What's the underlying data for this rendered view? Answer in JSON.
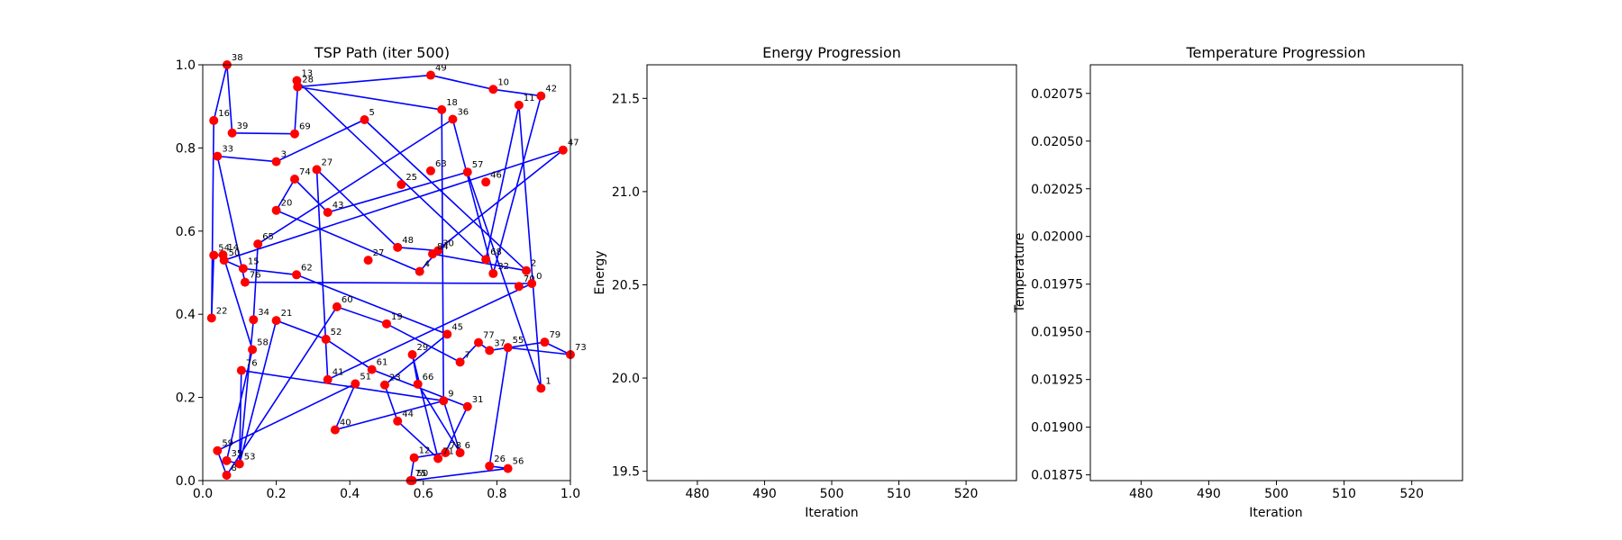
{
  "chart_data": [
    {
      "type": "scatter",
      "title": "TSP Path (iter 500)",
      "xlabel": "",
      "ylabel": "",
      "xlim": [
        0,
        1
      ],
      "ylim": [
        0,
        1
      ],
      "xticks": [
        "0.0",
        "0.2",
        "0.4",
        "0.6",
        "0.8",
        "1.0"
      ],
      "yticks": [
        "0.0",
        "0.2",
        "0.4",
        "0.6",
        "0.8",
        "1.0"
      ],
      "point_color": "#ff0000",
      "path_color": "#0000ff",
      "points": [
        {
          "id": "38",
          "x": 0.066,
          "y": 1.0
        },
        {
          "id": "13",
          "x": 0.256,
          "y": 0.962
        },
        {
          "id": "28",
          "x": 0.258,
          "y": 0.947
        },
        {
          "id": "49",
          "x": 0.62,
          "y": 0.975
        },
        {
          "id": "10",
          "x": 0.79,
          "y": 0.941
        },
        {
          "id": "42",
          "x": 0.92,
          "y": 0.925
        },
        {
          "id": "18",
          "x": 0.65,
          "y": 0.892
        },
        {
          "id": "11",
          "x": 0.86,
          "y": 0.903
        },
        {
          "id": "36",
          "x": 0.68,
          "y": 0.869
        },
        {
          "id": "16",
          "x": 0.03,
          "y": 0.866
        },
        {
          "id": "39",
          "x": 0.08,
          "y": 0.836
        },
        {
          "id": "69",
          "x": 0.25,
          "y": 0.834
        },
        {
          "id": "5",
          "x": 0.44,
          "y": 0.868
        },
        {
          "id": "47",
          "x": 0.98,
          "y": 0.795
        },
        {
          "id": "33",
          "x": 0.04,
          "y": 0.78
        },
        {
          "id": "3",
          "x": 0.2,
          "y": 0.767
        },
        {
          "id": "27",
          "x": 0.31,
          "y": 0.748
        },
        {
          "id": "74",
          "x": 0.25,
          "y": 0.725
        },
        {
          "id": "63",
          "x": 0.62,
          "y": 0.745
        },
        {
          "id": "57",
          "x": 0.72,
          "y": 0.742
        },
        {
          "id": "25",
          "x": 0.54,
          "y": 0.712
        },
        {
          "id": "46",
          "x": 0.77,
          "y": 0.718
        },
        {
          "id": "20",
          "x": 0.2,
          "y": 0.65
        },
        {
          "id": "43",
          "x": 0.34,
          "y": 0.645
        },
        {
          "id": "48",
          "x": 0.53,
          "y": 0.561
        },
        {
          "id": "30",
          "x": 0.64,
          "y": 0.553
        },
        {
          "id": "84",
          "x": 0.625,
          "y": 0.545
        },
        {
          "id": "68",
          "x": 0.77,
          "y": 0.532
        },
        {
          "id": "2",
          "x": 0.88,
          "y": 0.505
        },
        {
          "id": "32",
          "x": 0.79,
          "y": 0.498
        },
        {
          "id": "4",
          "x": 0.59,
          "y": 0.503
        },
        {
          "id": "70",
          "x": 0.86,
          "y": 0.467
        },
        {
          "id": "0",
          "x": 0.895,
          "y": 0.474
        },
        {
          "id": "54",
          "x": 0.03,
          "y": 0.542
        },
        {
          "id": "14",
          "x": 0.055,
          "y": 0.543
        },
        {
          "id": "50",
          "x": 0.058,
          "y": 0.53
        },
        {
          "id": "65",
          "x": 0.15,
          "y": 0.569
        },
        {
          "id": "15",
          "x": 0.11,
          "y": 0.51
        },
        {
          "id": "76b",
          "x": 0.115,
          "y": 0.477
        },
        {
          "id": "62",
          "x": 0.255,
          "y": 0.495
        },
        {
          "id": "27",
          "x": 0.45,
          "y": 0.53
        },
        {
          "id": "22",
          "x": 0.024,
          "y": 0.391
        },
        {
          "id": "34",
          "x": 0.138,
          "y": 0.387
        },
        {
          "id": "21",
          "x": 0.2,
          "y": 0.385
        },
        {
          "id": "60",
          "x": 0.365,
          "y": 0.418
        },
        {
          "id": "19",
          "x": 0.5,
          "y": 0.377
        },
        {
          "id": "45",
          "x": 0.665,
          "y": 0.352
        },
        {
          "id": "52",
          "x": 0.335,
          "y": 0.34
        },
        {
          "id": "77",
          "x": 0.75,
          "y": 0.332
        },
        {
          "id": "37",
          "x": 0.78,
          "y": 0.313
        },
        {
          "id": "55",
          "x": 0.83,
          "y": 0.32
        },
        {
          "id": "79",
          "x": 0.93,
          "y": 0.333
        },
        {
          "id": "73",
          "x": 1.0,
          "y": 0.303
        },
        {
          "id": "58",
          "x": 0.135,
          "y": 0.315
        },
        {
          "id": "29",
          "x": 0.57,
          "y": 0.303
        },
        {
          "id": "7",
          "x": 0.7,
          "y": 0.285
        },
        {
          "id": "61",
          "x": 0.46,
          "y": 0.267
        },
        {
          "id": "76",
          "x": 0.105,
          "y": 0.265
        },
        {
          "id": "41",
          "x": 0.34,
          "y": 0.243
        },
        {
          "id": "66",
          "x": 0.585,
          "y": 0.232
        },
        {
          "id": "51",
          "x": 0.415,
          "y": 0.233
        },
        {
          "id": "23",
          "x": 0.495,
          "y": 0.23
        },
        {
          "id": "1",
          "x": 0.92,
          "y": 0.222
        },
        {
          "id": "9",
          "x": 0.655,
          "y": 0.192
        },
        {
          "id": "31",
          "x": 0.72,
          "y": 0.178
        },
        {
          "id": "44",
          "x": 0.53,
          "y": 0.143
        },
        {
          "id": "40",
          "x": 0.36,
          "y": 0.122
        },
        {
          "id": "59",
          "x": 0.04,
          "y": 0.072
        },
        {
          "id": "78",
          "x": 0.66,
          "y": 0.067
        },
        {
          "id": "6",
          "x": 0.7,
          "y": 0.067
        },
        {
          "id": "12",
          "x": 0.575,
          "y": 0.055
        },
        {
          "id": "71",
          "x": 0.64,
          "y": 0.053
        },
        {
          "id": "26",
          "x": 0.78,
          "y": 0.035
        },
        {
          "id": "56",
          "x": 0.83,
          "y": 0.029
        },
        {
          "id": "35",
          "x": 0.065,
          "y": 0.048
        },
        {
          "id": "53",
          "x": 0.1,
          "y": 0.04
        },
        {
          "id": "8",
          "x": 0.065,
          "y": 0.013
        },
        {
          "id": "75",
          "x": 0.565,
          "y": 0.0
        },
        {
          "id": "50",
          "x": 0.57,
          "y": 0.0
        }
      ],
      "path": [
        "38",
        "16",
        "22",
        "54",
        "14",
        "58",
        "35",
        "53",
        "21",
        "52",
        "61",
        "31",
        "78",
        "12",
        "75",
        "56",
        "26",
        "55",
        "73",
        "79",
        "37",
        "77",
        "7",
        "19",
        "60",
        "8",
        "59",
        "51",
        "40",
        "9",
        "6",
        "66",
        "29",
        "71",
        "44",
        "23",
        "45",
        "62",
        "15",
        "50",
        "47",
        "84",
        "2",
        "5",
        "3",
        "33",
        "76b",
        "0",
        "41",
        "27",
        "48",
        "30",
        "4",
        "20",
        "74",
        "43",
        "57",
        "1",
        "11",
        "68",
        "13",
        "28",
        "49",
        "10",
        "42",
        "32",
        "36",
        "65",
        "34",
        "53",
        "76",
        "9",
        "18",
        "28",
        "69",
        "39",
        "38"
      ]
    },
    {
      "type": "line",
      "title": "Energy Progression",
      "xlabel": "Iteration",
      "ylabel": "Energy",
      "xlim": [
        472.5,
        527.5
      ],
      "ylim": [
        19.45,
        21.68
      ],
      "xticks": [
        "480",
        "490",
        "500",
        "510",
        "520"
      ],
      "yticks": [
        "19.5",
        "20.0",
        "20.5",
        "21.0",
        "21.5"
      ],
      "series": [
        {
          "x": [],
          "values": []
        }
      ]
    },
    {
      "type": "line",
      "title": "Temperature Progression",
      "xlabel": "Iteration",
      "ylabel": "Temperature",
      "xlim": [
        472.5,
        527.5
      ],
      "ylim": [
        0.01872,
        0.0209
      ],
      "xticks": [
        "480",
        "490",
        "500",
        "510",
        "520"
      ],
      "yticks": [
        "0.01875",
        "0.01900",
        "0.01925",
        "0.01950",
        "0.01975",
        "0.02000",
        "0.02025",
        "0.02050",
        "0.02075"
      ],
      "series": [
        {
          "x": [],
          "values": []
        }
      ]
    }
  ]
}
